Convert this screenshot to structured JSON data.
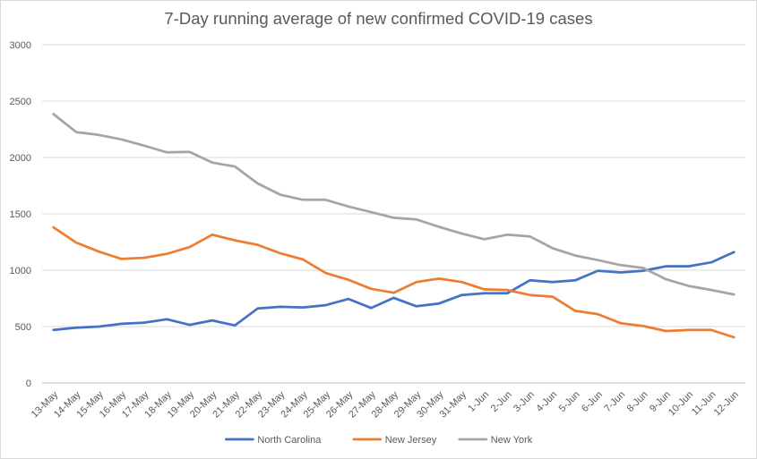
{
  "chart_data": {
    "type": "line",
    "title": "7-Day running average of new confirmed COVID-19 cases",
    "xlabel": "",
    "ylabel": "",
    "ylim": [
      0,
      3000
    ],
    "yticks": [
      0,
      500,
      1000,
      1500,
      2000,
      2500,
      3000
    ],
    "grid": true,
    "legend_position": "bottom",
    "categories": [
      "13-May",
      "14-May",
      "15-May",
      "16-May",
      "17-May",
      "18-May",
      "19-May",
      "20-May",
      "21-May",
      "22-May",
      "23-May",
      "24-May",
      "25-May",
      "26-May",
      "27-May",
      "28-May",
      "29-May",
      "30-May",
      "31-May",
      "1-Jun",
      "2-Jun",
      "3-Jun",
      "4-Jun",
      "5-Jun",
      "6-Jun",
      "7-Jun",
      "8-Jun",
      "9-Jun",
      "10-Jun",
      "11-Jun",
      "12-Jun"
    ],
    "series": [
      {
        "name": "North Carolina",
        "color": "#4472c4",
        "values": [
          470,
          490,
          500,
          525,
          535,
          565,
          515,
          555,
          510,
          660,
          675,
          670,
          690,
          745,
          665,
          755,
          680,
          705,
          780,
          795,
          795,
          910,
          895,
          910,
          995,
          980,
          995,
          1035,
          1035,
          1070,
          1160
        ]
      },
      {
        "name": "New Jersey",
        "color": "#ed7d31",
        "values": [
          1380,
          1245,
          1165,
          1100,
          1110,
          1145,
          1205,
          1315,
          1265,
          1225,
          1150,
          1095,
          975,
          915,
          835,
          800,
          895,
          925,
          895,
          830,
          825,
          780,
          765,
          640,
          610,
          530,
          505,
          460,
          470,
          470,
          405
        ]
      },
      {
        "name": "New York",
        "color": "#a5a5a5",
        "values": [
          2385,
          2225,
          2200,
          2160,
          2105,
          2045,
          2050,
          1955,
          1920,
          1770,
          1670,
          1625,
          1625,
          1565,
          1515,
          1465,
          1450,
          1385,
          1325,
          1275,
          1315,
          1300,
          1195,
          1130,
          1090,
          1045,
          1020,
          920,
          860,
          825,
          785
        ]
      }
    ]
  }
}
